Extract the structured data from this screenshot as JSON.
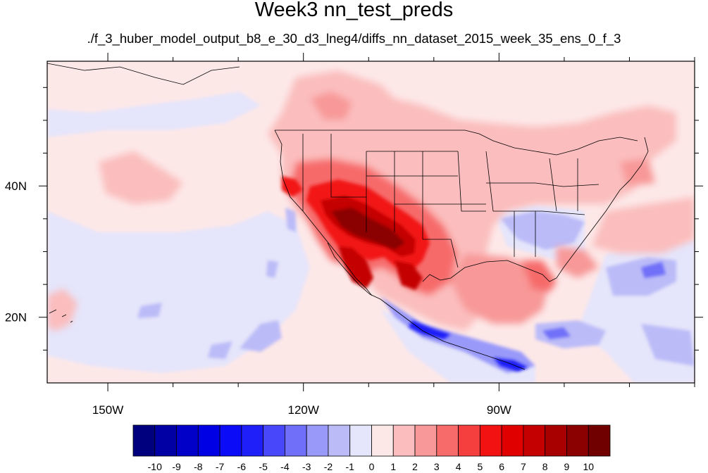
{
  "title": "Week3 nn_test_preds",
  "subtitle": "./f_3_huber_model_output_b8_e_30_d3_lneg4/diffs_nn_dataset_2015_week_35_ens_0_f_3",
  "map": {
    "projection": "cylindrical-equidistant",
    "lon_range": [
      -159.3,
      -60.0
    ],
    "lat_range": [
      10.0,
      59.0
    ],
    "lon_ticks": [
      {
        "value": -150,
        "label": "150W"
      },
      {
        "value": -120,
        "label": "120W"
      },
      {
        "value": -90,
        "label": "90W"
      }
    ],
    "lat_ticks": [
      {
        "value": 40,
        "label": "40N"
      },
      {
        "value": 20,
        "label": "20N"
      }
    ],
    "background_value": "0..1 (light pink)"
  },
  "colorbar": {
    "levels": [
      "-10",
      "-9",
      "-8",
      "-7",
      "-6",
      "-5",
      "-4",
      "-3",
      "-2",
      "-1",
      "0",
      "1",
      "2",
      "3",
      "4",
      "5",
      "6",
      "7",
      "8",
      "9",
      "10"
    ],
    "colors": [
      "#00007f",
      "#0000a5",
      "#0000c8",
      "#0000e5",
      "#0b0bf7",
      "#1f1ff9",
      "#4848fa",
      "#6f6ff9",
      "#9999fa",
      "#bbbbf8",
      "#e5e5fb",
      "#fde8e8",
      "#fbbdbd",
      "#f89898",
      "#f76b6b",
      "#f53e3e",
      "#f21212",
      "#e00000",
      "#c40000",
      "#a80000",
      "#8b0000",
      "#700000"
    ]
  }
}
